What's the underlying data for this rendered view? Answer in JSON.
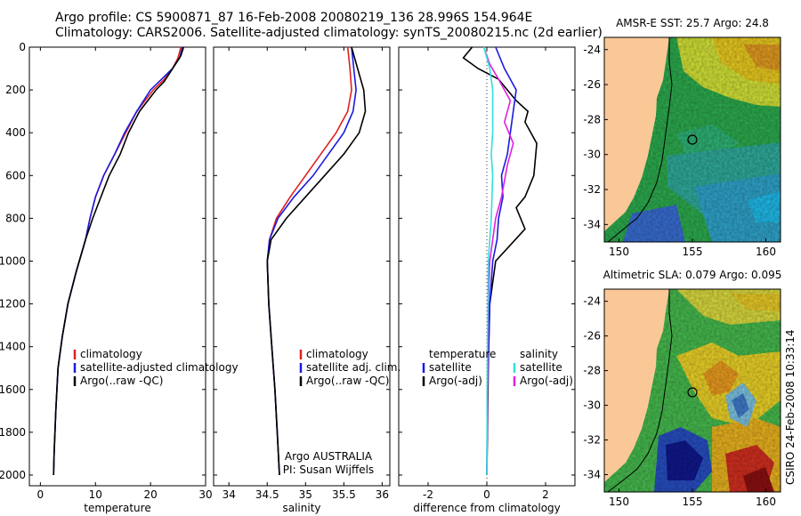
{
  "header": {
    "line1": "Argo profile: CS 5900871_87 16-Feb-2008 20080219_136 28.996S 154.964E",
    "line2": "Climatology: CARS2006. Satellite-adjusted climatology: synTS_20080215.nc (2d earlier)"
  },
  "credit": "CSIRO 24-Feb-2008 10:33:14",
  "colors": {
    "climatology": "#e02020",
    "satellite": "#1a1ae0",
    "argo": "#000000",
    "sal_satellite": "#30e0e0",
    "sal_argo": "#e020e0"
  },
  "chart_data": [
    {
      "type": "line",
      "xlabel": "temperature",
      "ylabel": "",
      "xlim": [
        -2,
        30
      ],
      "ylim": [
        2050,
        0
      ],
      "xticks": [
        "0",
        "10",
        "20",
        "30"
      ],
      "xtick_values": [
        0,
        10,
        20,
        30
      ],
      "yticks": [
        "0",
        "200",
        "400",
        "600",
        "800",
        "1000",
        "1200",
        "1400",
        "1600",
        "1800",
        "2000"
      ],
      "ytick_values": [
        0,
        200,
        400,
        600,
        800,
        1000,
        1200,
        1400,
        1600,
        1800,
        2000
      ],
      "legend": {
        "placement": "middle-left",
        "items": [
          {
            "label": "climatology",
            "color": "#e02020"
          },
          {
            "label": "satellite-adjusted climatology",
            "color": "#1a1ae0"
          },
          {
            "label": "Argo(..raw -QC)",
            "color": "#000000"
          }
        ]
      },
      "series": [
        {
          "color": "#e02020",
          "x": [
            25.5,
            25,
            24,
            22.5,
            20.5,
            17.5,
            15.5,
            13.5,
            11.5,
            10,
            9,
            8.2,
            6.5,
            5,
            4,
            3.2,
            2.8,
            2.5,
            2.4
          ],
          "y": [
            0,
            50,
            100,
            150,
            200,
            300,
            400,
            500,
            600,
            700,
            800,
            900,
            1050,
            1200,
            1350,
            1500,
            1700,
            1900,
            2000
          ]
        },
        {
          "color": "#1a1ae0",
          "x": [
            25.8,
            25.3,
            24,
            22,
            20,
            17.5,
            15.3,
            13.5,
            11.5,
            10,
            9,
            8.2,
            6.5,
            5,
            4,
            3.2,
            2.8,
            2.5,
            2.4
          ],
          "y": [
            0,
            50,
            100,
            150,
            200,
            300,
            400,
            500,
            600,
            700,
            800,
            900,
            1050,
            1200,
            1350,
            1500,
            1700,
            1900,
            2000
          ]
        },
        {
          "color": "#000000",
          "x": [
            26,
            25.5,
            24.5,
            23.5,
            22.5,
            21,
            18,
            16,
            14.5,
            12.5,
            11,
            9.5,
            8.2,
            6.5,
            5,
            4,
            3.2,
            2.8,
            2.5,
            2.4
          ],
          "y": [
            0,
            40,
            80,
            120,
            160,
            200,
            300,
            400,
            500,
            600,
            700,
            800,
            900,
            1050,
            1200,
            1350,
            1500,
            1700,
            1900,
            2000
          ]
        }
      ]
    },
    {
      "type": "line",
      "xlabel": "salinity",
      "ylabel": "",
      "xlim": [
        33.8,
        36.1
      ],
      "ylim": [
        2050,
        0
      ],
      "xticks": [
        "34",
        "34.5",
        "35",
        "35.5",
        "36"
      ],
      "xtick_values": [
        34,
        34.5,
        35,
        35.5,
        36
      ],
      "legend": {
        "placement": "middle-right",
        "items": [
          {
            "label": "climatology",
            "color": "#e02020"
          },
          {
            "label": "satellite adj. clim.",
            "color": "#1a1ae0"
          },
          {
            "label": "Argo(..raw -QC)",
            "color": "#000000"
          }
        ]
      },
      "annotation": [
        "Argo AUSTRALIA",
        "PI: Susan Wijffels"
      ],
      "series": [
        {
          "color": "#e02020",
          "x": [
            35.55,
            35.58,
            35.6,
            35.55,
            35.4,
            35.2,
            35.0,
            34.8,
            34.62,
            34.53,
            34.5,
            34.52,
            34.56,
            34.6,
            34.63,
            34.66
          ],
          "y": [
            0,
            100,
            200,
            300,
            400,
            500,
            600,
            700,
            800,
            900,
            1000,
            1200,
            1400,
            1600,
            1800,
            2000
          ]
        },
        {
          "color": "#1a1ae0",
          "x": [
            35.6,
            35.63,
            35.66,
            35.62,
            35.5,
            35.3,
            35.1,
            34.85,
            34.64,
            34.53,
            34.5,
            34.52,
            34.56,
            34.6,
            34.63,
            34.66
          ],
          "y": [
            0,
            100,
            200,
            300,
            400,
            500,
            600,
            700,
            800,
            900,
            1000,
            1200,
            1400,
            1600,
            1800,
            2000
          ]
        },
        {
          "color": "#000000",
          "x": [
            35.6,
            35.68,
            35.76,
            35.78,
            35.7,
            35.5,
            35.25,
            35.0,
            34.75,
            34.55,
            34.5,
            34.52,
            34.56,
            34.6,
            34.63,
            34.66
          ],
          "y": [
            0,
            100,
            200,
            300,
            400,
            500,
            600,
            700,
            800,
            900,
            1000,
            1200,
            1400,
            1600,
            1800,
            2000
          ]
        }
      ]
    },
    {
      "type": "line",
      "xlabel": "difference from climatology",
      "ylabel": "",
      "xlim": [
        -3,
        3
      ],
      "ylim": [
        2050,
        0
      ],
      "xticks": [
        "-2",
        "0",
        "2"
      ],
      "xtick_values": [
        -2,
        0,
        2
      ],
      "legend": {
        "placement": "middle",
        "items": [
          {
            "label": "temperature",
            "color": ""
          },
          {
            "label": "satellite",
            "color": "#1a1ae0"
          },
          {
            "label": "Argo(-adj)",
            "color": "#000000"
          },
          {
            "label": "salinity",
            "color": ""
          },
          {
            "label": "satellite",
            "color": "#30e0e0"
          },
          {
            "label": "Argo(-adj)",
            "color": "#e020e0"
          }
        ]
      },
      "series": [
        {
          "color": "#000000",
          "x": [
            -0.5,
            -0.8,
            -0.3,
            0.4,
            0.7,
            1.0,
            1.4,
            1.3,
            1.7,
            1.6,
            1.3,
            1.0,
            1.3,
            0.3,
            0.1,
            0.05,
            0.02,
            0
          ],
          "y": [
            0,
            50,
            100,
            150,
            200,
            250,
            300,
            350,
            450,
            600,
            700,
            750,
            850,
            1000,
            1200,
            1500,
            1800,
            2000
          ]
        },
        {
          "color": "#1a1ae0",
          "x": [
            0.3,
            0.6,
            1.0,
            0.9,
            0.8,
            0.7,
            0.5,
            0.55,
            0.4,
            0.35,
            0.2,
            0.1,
            0.02,
            0
          ],
          "y": [
            0,
            100,
            200,
            300,
            400,
            500,
            600,
            700,
            800,
            900,
            1000,
            1200,
            1600,
            2000
          ]
        },
        {
          "color": "#e020e0",
          "x": [
            -0.1,
            0.1,
            0.4,
            0.8,
            0.6,
            0.9,
            0.7,
            0.5,
            0.3,
            0.1,
            0.05,
            0.02,
            0
          ],
          "y": [
            0,
            80,
            150,
            250,
            350,
            450,
            550,
            700,
            800,
            1000,
            1200,
            1600,
            2000
          ]
        },
        {
          "color": "#30e0e0",
          "x": [
            -0.1,
            0.1,
            0.2,
            0.2,
            0.2,
            0.15,
            0.2,
            0.15,
            0.05,
            0.02,
            0
          ],
          "y": [
            0,
            100,
            200,
            300,
            400,
            500,
            600,
            800,
            1000,
            1400,
            2000
          ]
        }
      ]
    },
    {
      "type": "heatmap",
      "title": "AMSR-E SST: 25.7 Argo: 24.8",
      "xlim": [
        149,
        161
      ],
      "ylim": [
        -35,
        -23.3
      ],
      "xticks": [
        "150",
        "155",
        "160"
      ],
      "xtick_values": [
        150,
        155,
        160
      ],
      "yticks": [
        "-24",
        "-26",
        "-28",
        "-30",
        "-32",
        "-34"
      ],
      "ytick_values": [
        -24,
        -26,
        -28,
        -30,
        -32,
        -34
      ]
    },
    {
      "type": "heatmap",
      "title": "Altimetric SLA: 0.079 Argo: 0.095",
      "xlim": [
        149,
        161
      ],
      "ylim": [
        -35,
        -23.3
      ],
      "xticks": [
        "150",
        "155",
        "160"
      ],
      "xtick_values": [
        150,
        155,
        160
      ],
      "yticks": [
        "-24",
        "-26",
        "-28",
        "-30",
        "-32",
        "-34"
      ],
      "ytick_values": [
        -24,
        -26,
        -28,
        -30,
        -32,
        -34
      ]
    }
  ]
}
